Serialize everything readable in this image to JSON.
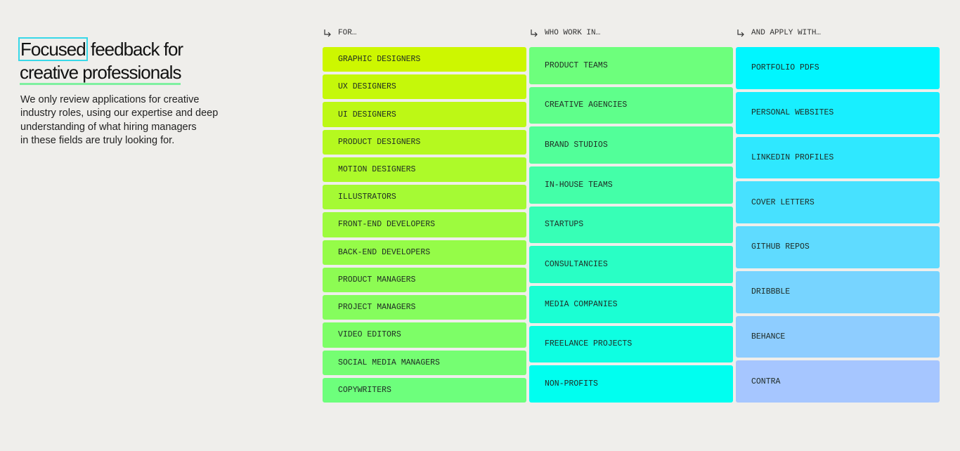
{
  "intro": {
    "heading": {
      "highlight": "Focused",
      "rest": "feedback for",
      "line2": "creative professionals"
    },
    "body": [
      "We only review applications for creative",
      "industry roles, using our expertise and deep",
      "understanding of what hiring managers",
      "in these fields are truly looking for."
    ]
  },
  "columns": [
    {
      "header": "FOR…",
      "items": [
        "GRAPHIC DESIGNERS",
        "UX DESIGNERS",
        "UI DESIGNERS",
        "PRODUCT DESIGNERS",
        "MOTION DESIGNERS",
        "ILLUSTRATORS",
        "FRONT-END DEVELOPERS",
        "BACK-END DEVELOPERS",
        "PRODUCT MANAGERS",
        "PROJECT MANAGERS",
        "VIDEO EDITORS",
        "SOCIAL MEDIA MANAGERS",
        "COPYWRITERS"
      ]
    },
    {
      "header": "WHO WORK IN…",
      "items": [
        "PRODUCT TEAMS",
        "CREATIVE AGENCIES",
        "BRAND STUDIOS",
        "IN-HOUSE TEAMS",
        "STARTUPS",
        "CONSULTANCIES",
        "MEDIA COMPANIES",
        "FREELANCE PROJECTS",
        "NON-PROFITS"
      ]
    },
    {
      "header": "AND APPLY WITH…",
      "items": [
        "PORTFOLIO PDFS",
        "PERSONAL WEBSITES",
        "LINKEDIN PROFILES",
        "COVER LETTERS",
        "GITHUB REPOS",
        "DRIBBBLE",
        "BEHANCE",
        "CONTRA"
      ]
    }
  ]
}
